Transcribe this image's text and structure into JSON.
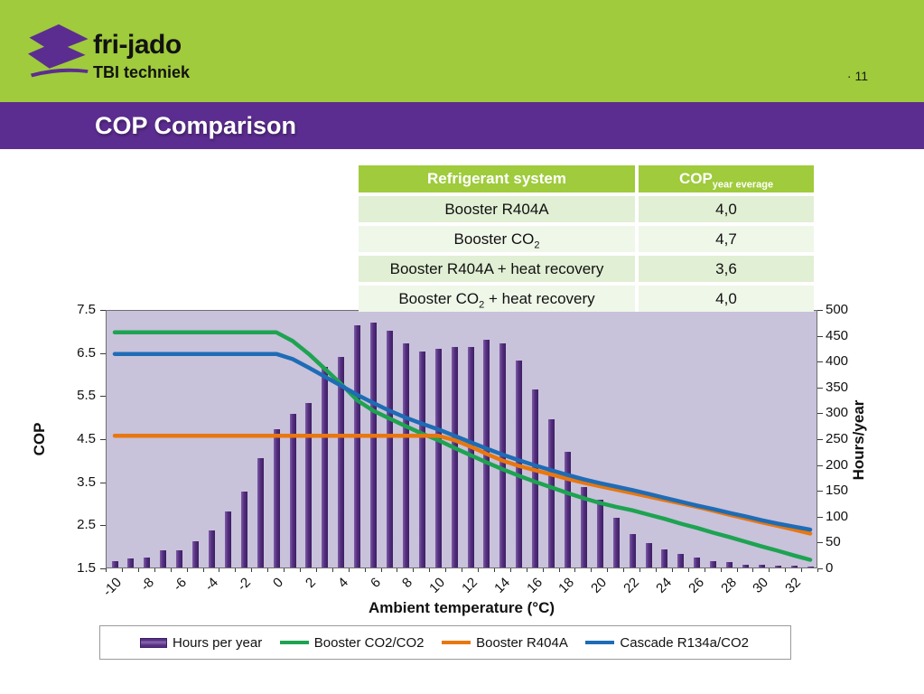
{
  "header": {
    "brand": "fri-jado",
    "subtitle": "TBI techniek",
    "page_number": "· 11"
  },
  "banner": {
    "title": "COP Comparison"
  },
  "table": {
    "col1_header": "Refrigerant system",
    "col2_header_main": "COP",
    "col2_header_sub": "year everage",
    "rows": [
      {
        "system_pre": "Booster R404A",
        "system_sub": "",
        "system_post": "",
        "cop": "4,0"
      },
      {
        "system_pre": "Booster CO",
        "system_sub": "2",
        "system_post": "",
        "cop": "4,7"
      },
      {
        "system_pre": "Booster R404A + heat recovery",
        "system_sub": "",
        "system_post": "",
        "cop": "3,6"
      },
      {
        "system_pre": "Booster CO",
        "system_sub": "2",
        "system_post": " + heat recovery",
        "cop": "4,0"
      }
    ]
  },
  "chart_data": {
    "type": "combo-bar-line",
    "xlabel": "Ambient temperature (°C)",
    "plot_bg": "#C8C2DB",
    "x": [
      -10,
      -9,
      -8,
      -7,
      -6,
      -5,
      -4,
      -3,
      -2,
      -1,
      0,
      1,
      2,
      3,
      4,
      5,
      6,
      7,
      8,
      9,
      10,
      11,
      12,
      13,
      14,
      15,
      16,
      17,
      18,
      19,
      20,
      21,
      22,
      23,
      24,
      25,
      26,
      27,
      28,
      29,
      30,
      31,
      32,
      33
    ],
    "bars": {
      "name": "Hours per year",
      "color": "#553080",
      "axis": "right",
      "values": [
        12,
        17,
        19,
        33,
        33,
        50,
        72,
        108,
        147,
        212,
        268,
        298,
        318,
        388,
        408,
        468,
        473,
        458,
        434,
        418,
        424,
        427,
        426,
        441,
        434,
        400,
        344,
        287,
        223,
        155,
        131,
        96,
        64,
        48,
        35,
        26,
        19,
        12,
        10,
        6,
        5,
        4,
        3,
        2
      ]
    },
    "series": [
      {
        "name": "Booster CO2/CO2",
        "color": "#1EA351",
        "values": [
          7.0,
          7.0,
          7.0,
          7.0,
          7.0,
          7.0,
          7.0,
          7.0,
          7.0,
          7.0,
          7.0,
          6.8,
          6.5,
          6.15,
          5.8,
          5.42,
          5.18,
          5.0,
          4.82,
          4.65,
          4.5,
          4.32,
          4.15,
          3.98,
          3.82,
          3.67,
          3.53,
          3.4,
          3.27,
          3.15,
          3.04,
          2.95,
          2.87,
          2.77,
          2.67,
          2.56,
          2.46,
          2.35,
          2.25,
          2.14,
          2.03,
          1.93,
          1.82,
          1.72
        ]
      },
      {
        "name": "Booster R404A",
        "color": "#E8770F",
        "values": [
          4.6,
          4.6,
          4.6,
          4.6,
          4.6,
          4.6,
          4.6,
          4.6,
          4.6,
          4.6,
          4.6,
          4.6,
          4.6,
          4.6,
          4.6,
          4.6,
          4.6,
          4.6,
          4.6,
          4.6,
          4.6,
          4.5,
          4.35,
          4.18,
          4.02,
          3.9,
          3.8,
          3.7,
          3.6,
          3.51,
          3.43,
          3.35,
          3.27,
          3.19,
          3.11,
          3.03,
          2.95,
          2.86,
          2.77,
          2.68,
          2.59,
          2.51,
          2.42,
          2.33
        ]
      },
      {
        "name": "Cascade R134a/CO2",
        "color": "#1E6CB5",
        "values": [
          6.5,
          6.5,
          6.5,
          6.5,
          6.5,
          6.5,
          6.5,
          6.5,
          6.5,
          6.5,
          6.5,
          6.38,
          6.18,
          5.97,
          5.76,
          5.55,
          5.36,
          5.18,
          5.02,
          4.88,
          4.75,
          4.6,
          4.45,
          4.3,
          4.16,
          4.03,
          3.91,
          3.8,
          3.69,
          3.59,
          3.5,
          3.42,
          3.34,
          3.25,
          3.16,
          3.07,
          2.98,
          2.9,
          2.81,
          2.73,
          2.64,
          2.56,
          2.49,
          2.42
        ]
      }
    ],
    "left_axis": {
      "label": "COP",
      "min": 1.5,
      "max": 7.5,
      "ticks": [
        "7.5",
        "6.5",
        "5.5",
        "4.5",
        "3.5",
        "2.5",
        "1.5"
      ]
    },
    "right_axis": {
      "label": "Hours/year",
      "min": 0,
      "max": 500,
      "ticks": [
        "500",
        "450",
        "400",
        "350",
        "300",
        "250",
        "200",
        "150",
        "100",
        "50",
        "0"
      ]
    }
  },
  "legend": {
    "items": [
      {
        "swatch": "bar",
        "label": "Hours per year",
        "color": "#553080"
      },
      {
        "swatch": "line",
        "label": "Booster CO2/CO2",
        "color": "#1EA351"
      },
      {
        "swatch": "line",
        "label": "Booster R404A",
        "color": "#E8770F"
      },
      {
        "swatch": "line",
        "label": "Cascade R134a/CO2",
        "color": "#1E6CB5"
      }
    ]
  }
}
